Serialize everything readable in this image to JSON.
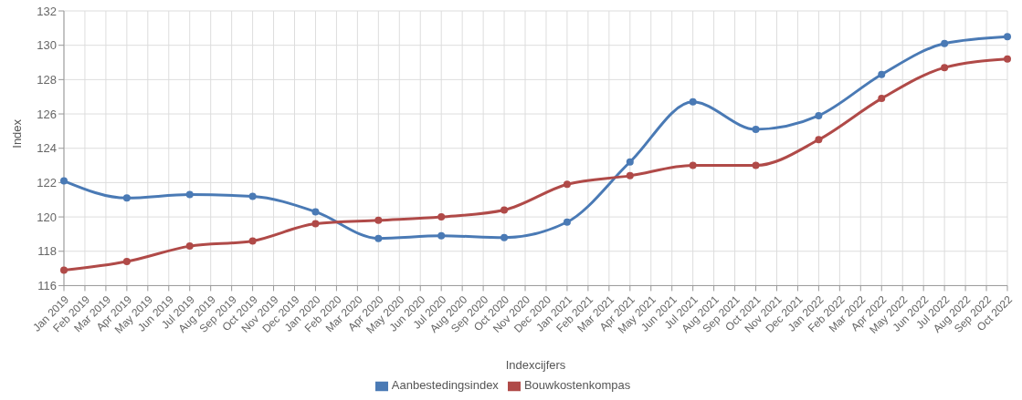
{
  "chart_data": {
    "type": "line",
    "xlabel": "Indexcijfers",
    "ylabel": "Index",
    "categories": [
      "Jan 2019",
      "Feb 2019",
      "Mar 2019",
      "Apr 2019",
      "May 2019",
      "Jun 2019",
      "Jul 2019",
      "Aug 2019",
      "Sep 2019",
      "Oct 2019",
      "Nov 2019",
      "Dec 2019",
      "Jan 2020",
      "Feb 2020",
      "Mar 2020",
      "Apr 2020",
      "May 2020",
      "Jun 2020",
      "Jul 2020",
      "Aug 2020",
      "Sep 2020",
      "Oct 2020",
      "Nov 2020",
      "Dec 2020",
      "Jan 2021",
      "Feb 2021",
      "Mar 2021",
      "Apr 2021",
      "May 2021",
      "Jun 2021",
      "Jul 2021",
      "Aug 2021",
      "Sep 2021",
      "Oct 2021",
      "Nov 2021",
      "Dec 2021",
      "Jan 2022",
      "Feb 2022",
      "Mar 2022",
      "Apr 2022",
      "May 2022",
      "Jun 2022",
      "Jul 2022",
      "Aug 2022",
      "Sep 2022",
      "Oct 2022"
    ],
    "series": [
      {
        "name": "Aanbestedingsindex",
        "color": "#4a7ab5",
        "values": [
          122.1,
          null,
          null,
          121.1,
          null,
          null,
          121.3,
          null,
          null,
          121.2,
          null,
          null,
          120.3,
          null,
          null,
          118.75,
          null,
          null,
          118.9,
          null,
          null,
          118.8,
          null,
          null,
          119.7,
          null,
          null,
          123.2,
          null,
          null,
          126.7,
          null,
          null,
          125.1,
          null,
          null,
          125.9,
          null,
          null,
          128.3,
          null,
          null,
          130.1,
          null,
          null,
          130.5
        ]
      },
      {
        "name": "Bouwkostenkompas",
        "color": "#b04a48",
        "values": [
          116.9,
          null,
          null,
          117.4,
          null,
          null,
          118.3,
          null,
          null,
          118.6,
          null,
          null,
          119.6,
          null,
          null,
          119.8,
          null,
          null,
          120.0,
          null,
          null,
          120.4,
          null,
          null,
          121.9,
          null,
          null,
          122.4,
          null,
          null,
          123.0,
          null,
          null,
          123.0,
          null,
          null,
          124.5,
          null,
          null,
          126.9,
          null,
          null,
          128.7,
          null,
          null,
          129.2
        ]
      }
    ],
    "ylim": [
      116,
      132
    ],
    "yticks": [
      116,
      118,
      120,
      122,
      124,
      126,
      128,
      130,
      132
    ],
    "grid": true,
    "legend": "bottom",
    "marker": "circle",
    "line_style": "solid"
  }
}
